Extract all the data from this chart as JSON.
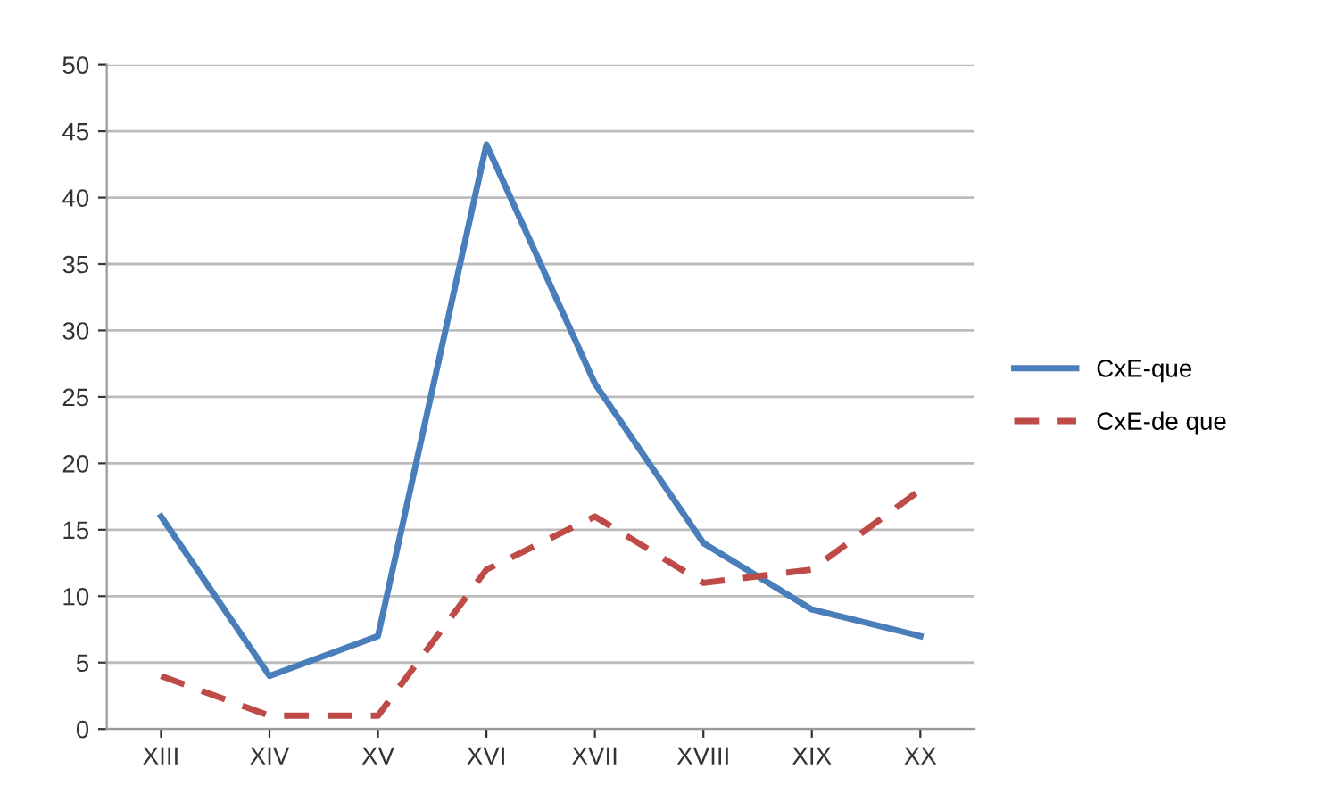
{
  "chart_data": {
    "type": "line",
    "categories": [
      "XIII",
      "XIV",
      "XV",
      "XVI",
      "XVII",
      "XVIII",
      "XIX",
      "XX"
    ],
    "series": [
      {
        "name": "CxE-que",
        "color": "#4a7ebb",
        "values": [
          16,
          4,
          7,
          44,
          26,
          14,
          9,
          7
        ],
        "line_style": "solid"
      },
      {
        "name": "CxE-de que",
        "color": "#be4b48",
        "values": [
          4,
          1,
          1,
          12,
          16,
          11,
          12,
          18
        ],
        "line_style": "dashed"
      }
    ],
    "ylim": [
      0,
      50
    ],
    "yticks": [
      0,
      5,
      10,
      15,
      20,
      25,
      30,
      35,
      40,
      45,
      50
    ],
    "grid": "y",
    "legend": "right",
    "marker": "none"
  }
}
